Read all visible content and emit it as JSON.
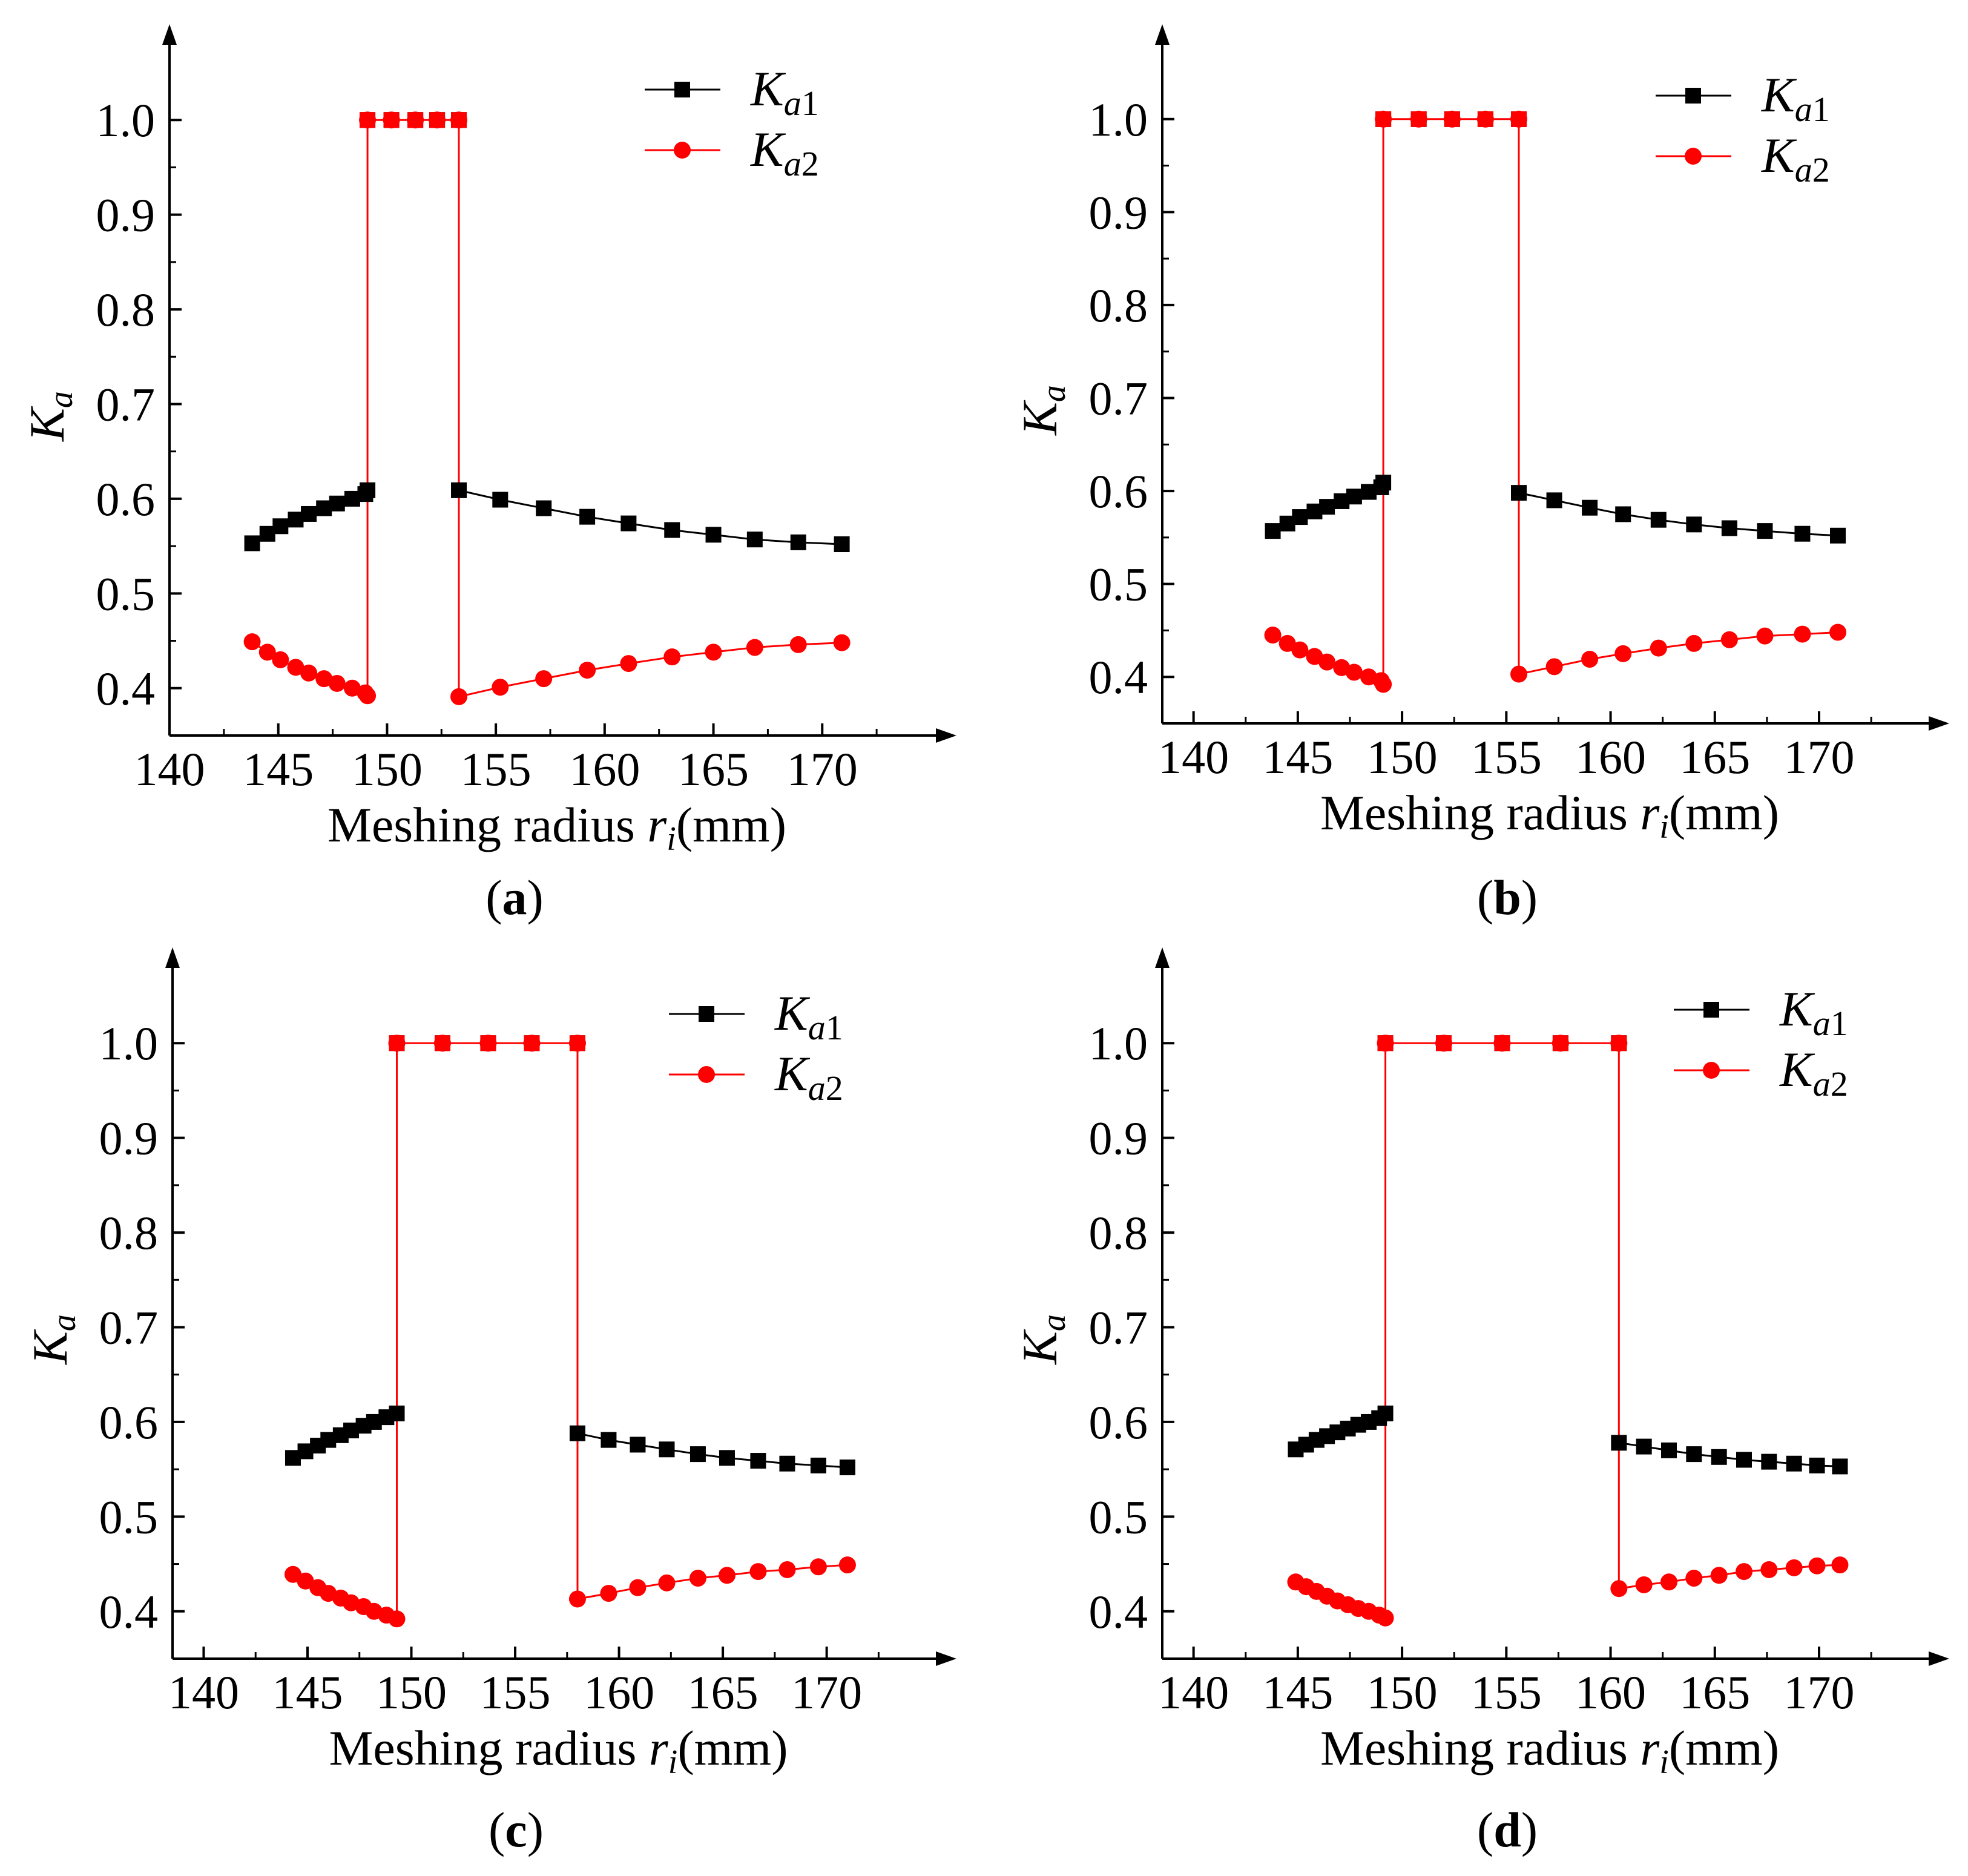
{
  "colors": {
    "series1": "#000000",
    "series2": "#ff0000",
    "axis": "#000000"
  },
  "chart_data": [
    {
      "type": "line",
      "panel_label": "a",
      "xlabel": "Meshing radius",
      "xlabel_var": "r",
      "xlabel_sub": "i",
      "xlabel_unit": "(mm)",
      "ylabel": "K",
      "ylabel_sub": "a",
      "xlim": [
        140,
        174.5
      ],
      "ylim": [
        0.35,
        1.05
      ],
      "xticks": [
        "140",
        "145",
        "150",
        "155",
        "160",
        "165",
        "170"
      ],
      "yticks": [
        "0.4",
        "0.5",
        "0.6",
        "0.7",
        "0.8",
        "0.9",
        "1.0"
      ],
      "series": [
        {
          "name": "K",
          "sub": "a1",
          "color": "#000000",
          "marker": "square",
          "segments": [
            [
              [
                143.8,
                0.553
              ],
              [
                144.5,
                0.563
              ],
              [
                145.1,
                0.571
              ],
              [
                145.8,
                0.578
              ],
              [
                146.4,
                0.584
              ],
              [
                147.1,
                0.59
              ],
              [
                147.7,
                0.595
              ],
              [
                148.4,
                0.6
              ],
              [
                149.0,
                0.605
              ],
              [
                149.1,
                0.609
              ]
            ],
            [
              [
                149.1,
                1.0
              ],
              [
                150.2,
                1.0
              ],
              [
                151.3,
                1.0
              ],
              [
                152.3,
                1.0
              ],
              [
                153.3,
                1.0
              ]
            ],
            [
              [
                153.3,
                0.609
              ],
              [
                155.2,
                0.599
              ],
              [
                157.2,
                0.59
              ],
              [
                159.2,
                0.581
              ],
              [
                161.1,
                0.574
              ],
              [
                163.1,
                0.567
              ],
              [
                165.0,
                0.562
              ],
              [
                166.9,
                0.557
              ],
              [
                168.9,
                0.554
              ],
              [
                170.9,
                0.552
              ]
            ]
          ]
        },
        {
          "name": "K",
          "sub": "a2",
          "color": "#ff0000",
          "marker": "circle",
          "segments": [
            [
              [
                143.8,
                0.449
              ],
              [
                144.5,
                0.438
              ],
              [
                145.1,
                0.43
              ],
              [
                145.8,
                0.422
              ],
              [
                146.4,
                0.416
              ],
              [
                147.1,
                0.41
              ],
              [
                147.7,
                0.405
              ],
              [
                148.4,
                0.4
              ],
              [
                149.0,
                0.395
              ],
              [
                149.1,
                0.392
              ],
              [
                149.1,
                1.0
              ],
              [
                150.2,
                1.0
              ],
              [
                151.3,
                1.0
              ],
              [
                152.3,
                1.0
              ],
              [
                153.3,
                1.0
              ],
              [
                153.3,
                0.391
              ],
              [
                155.2,
                0.401
              ],
              [
                157.2,
                0.41
              ],
              [
                159.2,
                0.419
              ],
              [
                161.1,
                0.426
              ],
              [
                163.1,
                0.433
              ],
              [
                165.0,
                0.438
              ],
              [
                166.9,
                0.443
              ],
              [
                168.9,
                0.446
              ],
              [
                170.9,
                0.448
              ]
            ]
          ]
        }
      ]
    },
    {
      "type": "line",
      "panel_label": "b",
      "xlabel": "Meshing radius",
      "xlabel_var": "r",
      "xlabel_sub": "i",
      "xlabel_unit": "(mm)",
      "ylabel": "K",
      "ylabel_sub": "a",
      "xlim": [
        138.5,
        174.5
      ],
      "ylim": [
        0.35,
        1.05
      ],
      "xticks": [
        "140",
        "145",
        "150",
        "155",
        "160",
        "165",
        "170"
      ],
      "yticks": [
        "0.4",
        "0.5",
        "0.6",
        "0.7",
        "0.8",
        "0.9",
        "1.0"
      ],
      "series": [
        {
          "name": "K",
          "sub": "a1",
          "color": "#000000",
          "marker": "square",
          "segments": [
            [
              [
                143.8,
                0.557
              ],
              [
                144.5,
                0.565
              ],
              [
                145.1,
                0.572
              ],
              [
                145.8,
                0.578
              ],
              [
                146.4,
                0.583
              ],
              [
                147.1,
                0.589
              ],
              [
                147.7,
                0.594
              ],
              [
                148.4,
                0.599
              ],
              [
                149.0,
                0.604
              ],
              [
                149.1,
                0.609
              ]
            ],
            [
              [
                149.1,
                1.0
              ],
              [
                150.8,
                1.0
              ],
              [
                152.4,
                1.0
              ],
              [
                154.0,
                1.0
              ],
              [
                155.6,
                1.0
              ]
            ],
            [
              [
                155.6,
                0.598
              ],
              [
                157.3,
                0.59
              ],
              [
                159.0,
                0.582
              ],
              [
                160.6,
                0.575
              ],
              [
                162.3,
                0.569
              ],
              [
                164.0,
                0.564
              ],
              [
                165.7,
                0.56
              ],
              [
                167.4,
                0.557
              ],
              [
                169.2,
                0.554
              ],
              [
                170.9,
                0.552
              ]
            ]
          ]
        },
        {
          "name": "K",
          "sub": "a2",
          "color": "#ff0000",
          "marker": "circle",
          "segments": [
            [
              [
                143.8,
                0.445
              ],
              [
                144.5,
                0.436
              ],
              [
                145.1,
                0.429
              ],
              [
                145.8,
                0.422
              ],
              [
                146.4,
                0.416
              ],
              [
                147.1,
                0.41
              ],
              [
                147.7,
                0.405
              ],
              [
                148.4,
                0.4
              ],
              [
                149.0,
                0.396
              ],
              [
                149.1,
                0.392
              ],
              [
                149.1,
                1.0
              ],
              [
                150.8,
                1.0
              ],
              [
                152.4,
                1.0
              ],
              [
                154.0,
                1.0
              ],
              [
                155.6,
                1.0
              ],
              [
                155.6,
                0.403
              ],
              [
                157.3,
                0.411
              ],
              [
                159.0,
                0.419
              ],
              [
                160.6,
                0.425
              ],
              [
                162.3,
                0.431
              ],
              [
                164.0,
                0.436
              ],
              [
                165.7,
                0.44
              ],
              [
                167.4,
                0.444
              ],
              [
                169.2,
                0.446
              ],
              [
                170.9,
                0.448
              ]
            ]
          ]
        }
      ]
    },
    {
      "type": "line",
      "panel_label": "c",
      "xlabel": "Meshing radius",
      "xlabel_var": "r",
      "xlabel_sub": "i",
      "xlabel_unit": "(mm)",
      "ylabel": "K",
      "ylabel_sub": "a",
      "xlim": [
        138.5,
        174.5
      ],
      "ylim": [
        0.35,
        1.05
      ],
      "xticks": [
        "140",
        "145",
        "150",
        "155",
        "160",
        "165",
        "170"
      ],
      "yticks": [
        "0.4",
        "0.5",
        "0.6",
        "0.7",
        "0.8",
        "0.9",
        "1.0"
      ],
      "series": [
        {
          "name": "K",
          "sub": "a1",
          "color": "#000000",
          "marker": "square",
          "segments": [
            [
              [
                144.3,
                0.562
              ],
              [
                144.9,
                0.569
              ],
              [
                145.5,
                0.575
              ],
              [
                146.0,
                0.581
              ],
              [
                146.6,
                0.586
              ],
              [
                147.1,
                0.591
              ],
              [
                147.7,
                0.596
              ],
              [
                148.2,
                0.6
              ],
              [
                148.8,
                0.605
              ],
              [
                149.3,
                0.609
              ]
            ],
            [
              [
                149.3,
                1.0
              ],
              [
                151.5,
                1.0
              ],
              [
                153.7,
                1.0
              ],
              [
                155.8,
                1.0
              ],
              [
                158.0,
                1.0
              ]
            ],
            [
              [
                158.0,
                0.588
              ],
              [
                159.5,
                0.581
              ],
              [
                160.9,
                0.576
              ],
              [
                162.3,
                0.571
              ],
              [
                163.8,
                0.566
              ],
              [
                165.2,
                0.562
              ],
              [
                166.7,
                0.559
              ],
              [
                168.1,
                0.556
              ],
              [
                169.6,
                0.554
              ],
              [
                171.0,
                0.552
              ]
            ]
          ]
        },
        {
          "name": "K",
          "sub": "a2",
          "color": "#ff0000",
          "marker": "circle",
          "segments": [
            [
              [
                144.3,
                0.439
              ],
              [
                144.9,
                0.432
              ],
              [
                145.5,
                0.425
              ],
              [
                146.0,
                0.419
              ],
              [
                146.6,
                0.414
              ],
              [
                147.1,
                0.409
              ],
              [
                147.7,
                0.405
              ],
              [
                148.2,
                0.4
              ],
              [
                148.8,
                0.396
              ],
              [
                149.3,
                0.392
              ],
              [
                149.3,
                1.0
              ],
              [
                151.5,
                1.0
              ],
              [
                153.7,
                1.0
              ],
              [
                155.8,
                1.0
              ],
              [
                158.0,
                1.0
              ],
              [
                158.0,
                0.413
              ],
              [
                159.5,
                0.419
              ],
              [
                160.9,
                0.425
              ],
              [
                162.3,
                0.43
              ],
              [
                163.8,
                0.435
              ],
              [
                165.2,
                0.438
              ],
              [
                166.7,
                0.442
              ],
              [
                168.1,
                0.444
              ],
              [
                169.6,
                0.447
              ],
              [
                171.0,
                0.449
              ]
            ]
          ]
        }
      ]
    },
    {
      "type": "line",
      "panel_label": "d",
      "xlabel": "Meshing radius",
      "xlabel_var": "r",
      "xlabel_sub": "i",
      "xlabel_unit": "(mm)",
      "ylabel": "K",
      "ylabel_sub": "a",
      "xlim": [
        138.5,
        174.5
      ],
      "ylim": [
        0.35,
        1.05
      ],
      "xticks": [
        "140",
        "145",
        "150",
        "155",
        "160",
        "165",
        "170"
      ],
      "yticks": [
        "0.4",
        "0.5",
        "0.6",
        "0.7",
        "0.8",
        "0.9",
        "1.0"
      ],
      "series": [
        {
          "name": "K",
          "sub": "a1",
          "color": "#000000",
          "marker": "square",
          "segments": [
            [
              [
                144.9,
                0.571
              ],
              [
                145.4,
                0.576
              ],
              [
                145.9,
                0.581
              ],
              [
                146.4,
                0.585
              ],
              [
                146.9,
                0.589
              ],
              [
                147.4,
                0.593
              ],
              [
                147.9,
                0.597
              ],
              [
                148.4,
                0.6
              ],
              [
                148.9,
                0.604
              ],
              [
                149.2,
                0.609
              ]
            ],
            [
              [
                149.2,
                1.0
              ],
              [
                152.0,
                1.0
              ],
              [
                154.8,
                1.0
              ],
              [
                157.6,
                1.0
              ],
              [
                160.4,
                1.0
              ]
            ],
            [
              [
                160.4,
                0.578
              ],
              [
                161.6,
                0.574
              ],
              [
                162.8,
                0.57
              ],
              [
                164.0,
                0.566
              ],
              [
                165.2,
                0.563
              ],
              [
                166.4,
                0.56
              ],
              [
                167.6,
                0.558
              ],
              [
                168.8,
                0.556
              ],
              [
                169.9,
                0.554
              ],
              [
                171.0,
                0.553
              ]
            ]
          ]
        },
        {
          "name": "K",
          "sub": "a2",
          "color": "#ff0000",
          "marker": "circle",
          "segments": [
            [
              [
                144.9,
                0.431
              ],
              [
                145.4,
                0.426
              ],
              [
                145.9,
                0.421
              ],
              [
                146.4,
                0.416
              ],
              [
                146.9,
                0.411
              ],
              [
                147.4,
                0.407
              ],
              [
                147.9,
                0.403
              ],
              [
                148.4,
                0.4
              ],
              [
                148.9,
                0.396
              ],
              [
                149.2,
                0.393
              ],
              [
                149.2,
                1.0
              ],
              [
                152.0,
                1.0
              ],
              [
                154.8,
                1.0
              ],
              [
                157.6,
                1.0
              ],
              [
                160.4,
                1.0
              ],
              [
                160.4,
                0.424
              ],
              [
                161.6,
                0.428
              ],
              [
                162.8,
                0.431
              ],
              [
                164.0,
                0.435
              ],
              [
                165.2,
                0.438
              ],
              [
                166.4,
                0.442
              ],
              [
                167.6,
                0.444
              ],
              [
                168.8,
                0.446
              ],
              [
                169.9,
                0.448
              ],
              [
                171.0,
                0.449
              ]
            ]
          ]
        }
      ]
    }
  ]
}
